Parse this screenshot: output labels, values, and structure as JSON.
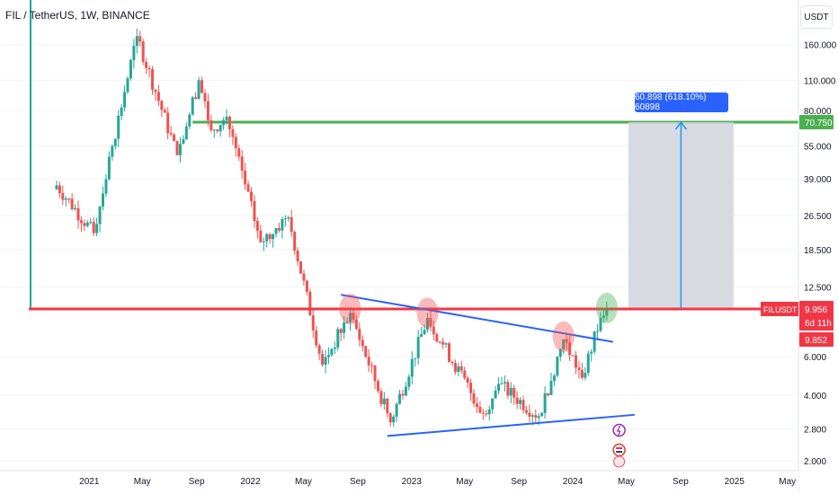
{
  "header": {
    "title": "FIL / TetherUS, 1W, BINANCE",
    "unit_button": "USDT"
  },
  "axis": {
    "y_ticks": [
      "160.000",
      "110.000",
      "80.000",
      "55.000",
      "39.000",
      "26.500",
      "18.500",
      "12.500",
      "6.000",
      "4.000",
      "2.800",
      "2.000"
    ],
    "x_ticks": [
      "2021",
      "May",
      "Sep",
      "2022",
      "May",
      "Sep",
      "2023",
      "May",
      "Sep",
      "2024",
      "May",
      "Sep",
      "2025",
      "May"
    ]
  },
  "labels": {
    "target_price": "70.750",
    "symbol": "FILUSDT",
    "last_price": "9.956",
    "countdown": "6d 11h",
    "prev_price": "9.852",
    "measure": "60.898 (618.10%) 60898"
  },
  "colors": {
    "up": "#26a69a",
    "down": "#ef5350",
    "support": "#f23645",
    "resistance_line": "#4caf50",
    "trend": "#2962ff",
    "projection_box": "#d1d4dc"
  },
  "chart_data": {
    "type": "candlestick",
    "scale": "log",
    "ylim": [
      1.8,
      200
    ],
    "xlim": [
      "2020-08-17",
      "2025-05-26"
    ],
    "horizontal_levels": [
      {
        "name": "resistance",
        "value": 70.75
      },
      {
        "name": "support",
        "value": 9.9
      }
    ],
    "trendlines": [
      {
        "name": "descending",
        "from": [
          "2022-07-25",
          11.5
        ],
        "to": [
          "2024-04-01",
          7.0
        ]
      },
      {
        "name": "ascending",
        "from": [
          "2022-11-07",
          2.6
        ],
        "to": [
          "2024-05-20",
          3.25
        ]
      }
    ],
    "projection": {
      "from_date": "2024-05-06",
      "to_date": "2024-12-30",
      "from_value": 9.9,
      "to_value": 70.75
    },
    "highlights": [
      {
        "date": "2022-08-15",
        "value": 9.9,
        "color": "#ef5350"
      },
      {
        "date": "2023-02-06",
        "value": 9.5,
        "color": "#ef5350"
      },
      {
        "date": "2023-12-11",
        "value": 7.4,
        "color": "#ef5350"
      },
      {
        "date": "2024-03-18",
        "value": 10.0,
        "color": "#4caf50"
      }
    ],
    "series": [
      {
        "start": "2020-10-12",
        "end": "2021-01-11",
        "from": 38,
        "to": 22
      },
      {
        "start": "2021-01-11",
        "end": "2021-02-22",
        "from": 22,
        "to": 55
      },
      {
        "start": "2021-02-22",
        "end": "2021-04-19",
        "from": 55,
        "to": 175
      },
      {
        "start": "2021-04-19",
        "end": "2021-07-19",
        "from": 175,
        "to": 50
      },
      {
        "start": "2021-07-19",
        "end": "2021-09-06",
        "from": 50,
        "to": 110
      },
      {
        "start": "2021-09-06",
        "end": "2021-10-04",
        "from": 110,
        "to": 65
      },
      {
        "start": "2021-10-04",
        "end": "2021-11-08",
        "from": 65,
        "to": 75
      },
      {
        "start": "2021-11-08",
        "end": "2022-01-24",
        "from": 75,
        "to": 20
      },
      {
        "start": "2022-01-24",
        "end": "2022-03-28",
        "from": 20,
        "to": 26
      },
      {
        "start": "2022-03-28",
        "end": "2022-06-13",
        "from": 26,
        "to": 5.5
      },
      {
        "start": "2022-06-13",
        "end": "2022-08-15",
        "from": 5.5,
        "to": 9.5
      },
      {
        "start": "2022-08-15",
        "end": "2022-11-14",
        "from": 9.5,
        "to": 3.0
      },
      {
        "start": "2022-11-14",
        "end": "2023-02-06",
        "from": 3.0,
        "to": 9.0
      },
      {
        "start": "2023-02-06",
        "end": "2023-06-12",
        "from": 9.0,
        "to": 3.3
      },
      {
        "start": "2023-06-12",
        "end": "2023-07-17",
        "from": 3.3,
        "to": 4.5
      },
      {
        "start": "2023-07-17",
        "end": "2023-10-16",
        "from": 4.5,
        "to": 3.2
      },
      {
        "start": "2023-10-16",
        "end": "2023-12-11",
        "from": 3.2,
        "to": 7.2
      },
      {
        "start": "2023-12-11",
        "end": "2024-01-22",
        "from": 7.2,
        "to": 4.8
      },
      {
        "start": "2024-01-22",
        "end": "2024-03-04",
        "from": 4.8,
        "to": 9.0
      },
      {
        "start": "2024-03-04",
        "end": "2024-03-18",
        "from": 9.0,
        "to": 9.956
      }
    ]
  }
}
